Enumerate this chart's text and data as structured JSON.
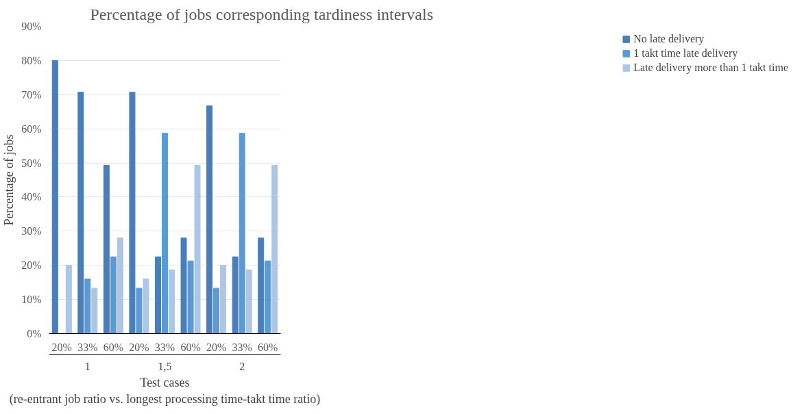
{
  "chart_data": {
    "type": "bar",
    "title": "Percentage of jobs corresponding tardiness intervals",
    "xlabel": "Test cases\n(re-entrant job ratio vs. longest processing time-takt time ratio)",
    "ylabel": "Percentage of jobs",
    "categories": [
      "20%",
      "33%",
      "60%",
      "20%",
      "33%",
      "60%",
      "20%",
      "33%",
      "60%"
    ],
    "annotations": [
      "1",
      "1,5",
      "2"
    ],
    "series": [
      {
        "name": "No late delivery",
        "color": "#4a7ebb",
        "values": [
          80,
          70.7,
          49.3,
          70.7,
          22.5,
          28,
          66.7,
          22.5,
          28
        ]
      },
      {
        "name": "1 takt time late delivery",
        "color": "#5b9bd5",
        "values": [
          0,
          16,
          22.5,
          13.3,
          58.7,
          21.3,
          13.3,
          58.7,
          21.3
        ]
      },
      {
        "name": "Late delivery more than 1 takt time",
        "color": "#adc6e6",
        "values": [
          20,
          13.3,
          28,
          16,
          18.7,
          49.3,
          20,
          18.7,
          49.3
        ]
      }
    ],
    "ylim": [
      0,
      90
    ],
    "yticks": [
      {
        "value": 0,
        "label": "0%"
      },
      {
        "value": 10,
        "label": "10%"
      },
      {
        "value": 20,
        "label": "20%"
      },
      {
        "value": 30,
        "label": "30%"
      },
      {
        "value": 40,
        "label": "40%"
      },
      {
        "value": 50,
        "label": "50%"
      },
      {
        "value": 60,
        "label": "60%"
      },
      {
        "value": 70,
        "label": "70%"
      },
      {
        "value": 80,
        "label": "80%"
      },
      {
        "value": 90,
        "label": "90%"
      }
    ],
    "grid": "y",
    "legend": "right"
  }
}
